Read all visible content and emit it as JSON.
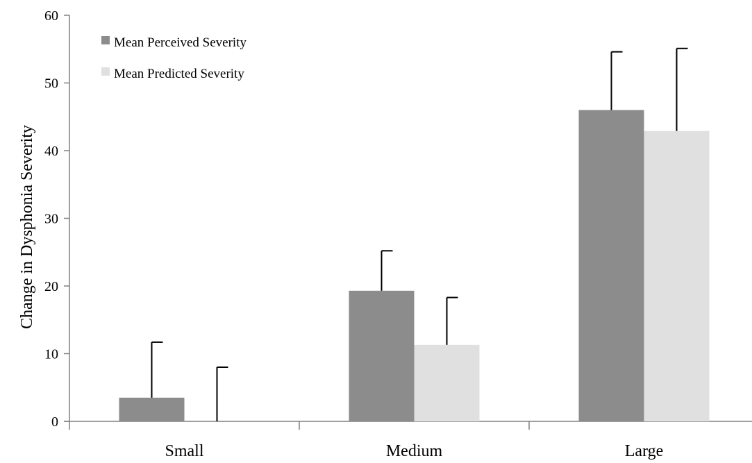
{
  "chart_data": {
    "type": "bar",
    "title": "",
    "xlabel": "",
    "ylabel": "Change in Dysphonia Severity",
    "categories": [
      "Small",
      "Medium",
      "Large"
    ],
    "ylim": [
      0,
      60
    ],
    "yticks": [
      0,
      10,
      20,
      30,
      40,
      50,
      60
    ],
    "grid": false,
    "legend_position": "top-left",
    "series": [
      {
        "name": "Mean Perceived Severity",
        "color": "#8c8c8c",
        "values": [
          3.5,
          19.3,
          46.0
        ],
        "error_plus": [
          8.2,
          5.9,
          8.6
        ]
      },
      {
        "name": "Mean Predicted Severity",
        "color": "#e0e0e0",
        "values": [
          0.0,
          11.3,
          42.9
        ],
        "error_plus": [
          8.0,
          7.0,
          12.2
        ]
      }
    ],
    "error_bar_color": "#000000",
    "axis_color": "#808080"
  }
}
